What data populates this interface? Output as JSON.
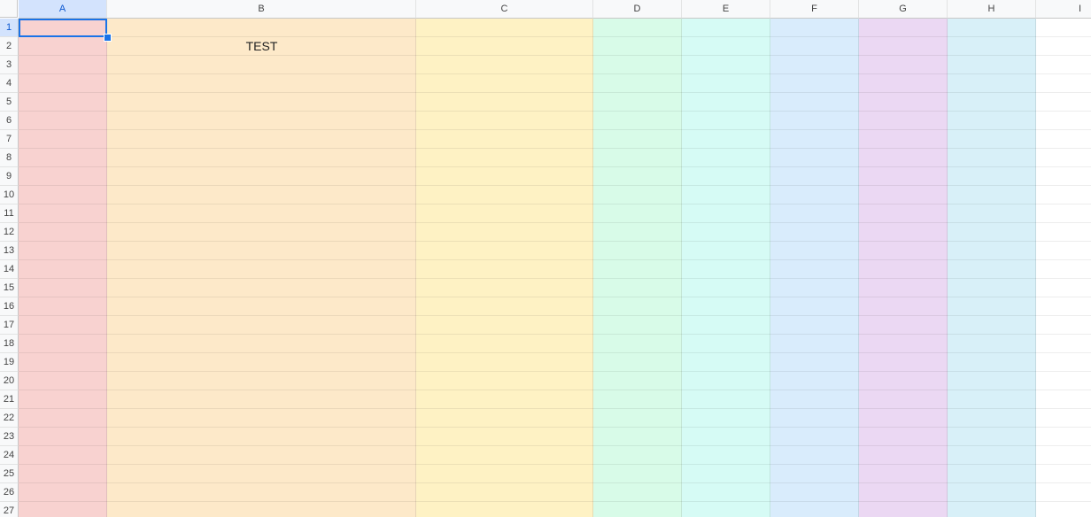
{
  "columns": [
    {
      "label": "A",
      "color": "#f8d2d0"
    },
    {
      "label": "B",
      "color": "#fde9c9"
    },
    {
      "label": "C",
      "color": "#fef2c4"
    },
    {
      "label": "D",
      "color": "#d8fbe8"
    },
    {
      "label": "E",
      "color": "#d6fbf5"
    },
    {
      "label": "F",
      "color": "#d9ecfc"
    },
    {
      "label": "G",
      "color": "#ebd8f3"
    },
    {
      "label": "H",
      "color": "#d8f0f8"
    },
    {
      "label": "I",
      "color": "#ffffff"
    }
  ],
  "rows": [
    "1",
    "2",
    "3",
    "4",
    "5",
    "6",
    "7",
    "8",
    "9",
    "10",
    "11",
    "12",
    "13",
    "14",
    "15",
    "16",
    "17",
    "18",
    "19",
    "20",
    "21",
    "22",
    "23",
    "24",
    "25",
    "26",
    "27"
  ],
  "cells": [
    {
      "ref": "B2",
      "value": "TEST"
    }
  ],
  "selected_cell": "A1"
}
